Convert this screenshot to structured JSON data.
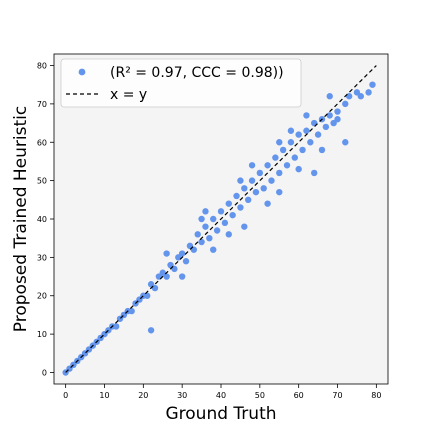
{
  "chart_data": {
    "type": "scatter",
    "title": "",
    "xlabel": "Ground Truth",
    "ylabel": "Proposed Trained Heuristic",
    "xlim": [
      -3,
      83
    ],
    "ylim": [
      -3,
      83
    ],
    "xticks": [
      0,
      10,
      20,
      30,
      40,
      50,
      60,
      70,
      80
    ],
    "yticks": [
      0,
      10,
      20,
      30,
      40,
      50,
      60,
      70,
      80
    ],
    "grid": false,
    "background": "#f4f4f4",
    "legend": {
      "position": "top-left",
      "entries": [
        {
          "label": "(R² = 0.97, CCC = 0.98))",
          "marker": "dot",
          "color": "#6495ed"
        },
        {
          "label": "x = y",
          "marker": "dashed-line",
          "color": "#000000"
        }
      ]
    },
    "reference_line": {
      "label": "x = y",
      "from": [
        0,
        0
      ],
      "to": [
        80,
        80
      ],
      "style": "dashed",
      "color": "#000000"
    },
    "series": [
      {
        "color": "#6495ed",
        "points_note": "dense cloud of points hugging the diagonal, spread widening with value",
        "sample_points": [
          [
            0,
            0
          ],
          [
            1,
            1
          ],
          [
            2,
            2
          ],
          [
            3,
            3
          ],
          [
            4,
            4
          ],
          [
            5,
            5
          ],
          [
            6,
            6
          ],
          [
            7,
            7
          ],
          [
            8,
            8
          ],
          [
            9,
            9
          ],
          [
            10,
            10
          ],
          [
            11,
            11
          ],
          [
            12,
            12
          ],
          [
            13,
            12
          ],
          [
            14,
            14
          ],
          [
            15,
            15
          ],
          [
            16,
            16
          ],
          [
            17,
            16
          ],
          [
            18,
            18
          ],
          [
            19,
            19
          ],
          [
            20,
            20
          ],
          [
            21,
            20
          ],
          [
            22,
            23
          ],
          [
            23,
            22
          ],
          [
            24,
            25
          ],
          [
            25,
            26
          ],
          [
            26,
            25
          ],
          [
            27,
            28
          ],
          [
            28,
            27
          ],
          [
            29,
            30
          ],
          [
            30,
            31
          ],
          [
            31,
            29
          ],
          [
            32,
            33
          ],
          [
            33,
            32
          ],
          [
            34,
            36
          ],
          [
            35,
            34
          ],
          [
            36,
            38
          ],
          [
            37,
            35
          ],
          [
            38,
            40
          ],
          [
            39,
            37
          ],
          [
            40,
            42
          ],
          [
            41,
            39
          ],
          [
            42,
            44
          ],
          [
            43,
            41
          ],
          [
            44,
            46
          ],
          [
            45,
            43
          ],
          [
            46,
            48
          ],
          [
            47,
            45
          ],
          [
            48,
            50
          ],
          [
            49,
            47
          ],
          [
            50,
            52
          ],
          [
            51,
            48
          ],
          [
            52,
            54
          ],
          [
            53,
            50
          ],
          [
            54,
            56
          ],
          [
            55,
            52
          ],
          [
            56,
            58
          ],
          [
            57,
            54
          ],
          [
            58,
            60
          ],
          [
            59,
            56
          ],
          [
            60,
            62
          ],
          [
            61,
            58
          ],
          [
            62,
            63
          ],
          [
            63,
            60
          ],
          [
            64,
            65
          ],
          [
            65,
            62
          ],
          [
            66,
            66
          ],
          [
            67,
            64
          ],
          [
            68,
            67
          ],
          [
            69,
            65
          ],
          [
            70,
            68
          ],
          [
            72,
            70
          ],
          [
            73,
            72
          ],
          [
            75,
            73
          ],
          [
            76,
            72
          ],
          [
            78,
            73
          ],
          [
            79,
            75
          ],
          [
            22,
            11
          ],
          [
            30,
            25
          ],
          [
            38,
            32
          ],
          [
            46,
            38
          ],
          [
            55,
            47
          ],
          [
            64,
            52
          ],
          [
            70,
            66
          ],
          [
            72,
            60
          ],
          [
            68,
            72
          ],
          [
            58,
            63
          ],
          [
            48,
            54
          ],
          [
            36,
            42
          ],
          [
            26,
            31
          ],
          [
            35,
            40
          ],
          [
            45,
            50
          ],
          [
            55,
            60
          ],
          [
            62,
            67
          ],
          [
            42,
            36
          ],
          [
            52,
            44
          ],
          [
            60,
            53
          ],
          [
            66,
            58
          ]
        ]
      }
    ]
  }
}
